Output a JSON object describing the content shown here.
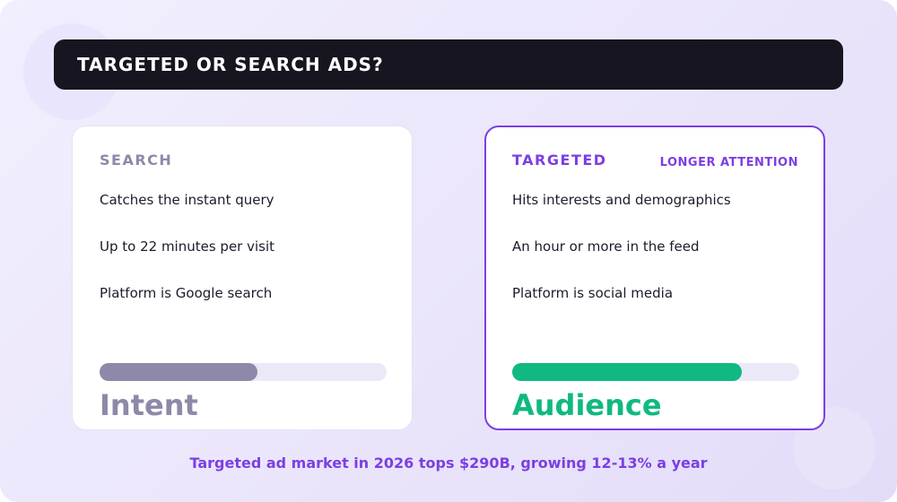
{
  "header": {
    "title": "TARGETED OR SEARCH ADS?"
  },
  "cards": [
    {
      "label": "SEARCH",
      "points": [
        "Catches the instant query",
        "Up to 22 minutes per visit",
        "Platform is Google search"
      ],
      "metric": "Intent"
    },
    {
      "label": "TARGETED",
      "badge": "LONGER ATTENTION",
      "points": [
        "Hits interests and demographics",
        "An hour or more in the feed",
        "Platform is social media"
      ],
      "metric": "Audience"
    }
  ],
  "footer": "Targeted ad market in 2026 tops $290B, growing 12-13% a year"
}
